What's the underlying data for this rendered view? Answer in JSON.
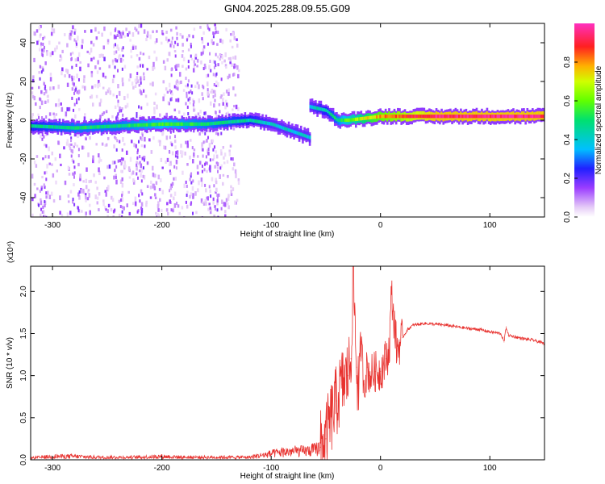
{
  "title": "GN04.2025.288.09.55.G09",
  "chart_data": [
    {
      "type": "heatmap",
      "title": "GN04.2025.288.09.55.G09",
      "xlabel": "Height of straight line (km)",
      "ylabel": "Frequency (Hz)",
      "xlim": [
        -320,
        150
      ],
      "ylim": [
        -50,
        50
      ],
      "xticks": [
        -300,
        -200,
        -100,
        0,
        100
      ],
      "xtick_labels": [
        "-300",
        "-200",
        "-100",
        "0",
        "100"
      ],
      "yticks": [
        -40,
        -20,
        0,
        20,
        40
      ],
      "ytick_labels": [
        "-40",
        "-20",
        "0",
        "20",
        "40"
      ],
      "colorbar": {
        "label": "Normalized spectral amplitude",
        "range": [
          0,
          1
        ],
        "ticks": [
          0.0,
          0.2,
          0.4,
          0.6,
          0.8
        ],
        "tick_labels": [
          "0.0",
          "0.2",
          "0.4",
          "0.6",
          "0.8"
        ]
      },
      "main_track": [
        {
          "x": -320,
          "f": -3,
          "amp": 0.45
        },
        {
          "x": -280,
          "f": -4,
          "amp": 0.5
        },
        {
          "x": -240,
          "f": -3,
          "amp": 0.5
        },
        {
          "x": -200,
          "f": -2,
          "amp": 0.55
        },
        {
          "x": -160,
          "f": -2,
          "amp": 0.5
        },
        {
          "x": -120,
          "f": 0,
          "amp": 0.45
        },
        {
          "x": -100,
          "f": -2,
          "amp": 0.4
        },
        {
          "x": -80,
          "f": -6,
          "amp": 0.4
        },
        {
          "x": -65,
          "f": -9,
          "amp": 0.4
        }
      ],
      "branch_track": [
        {
          "x": -65,
          "f": 7,
          "amp": 0.4
        },
        {
          "x": -50,
          "f": 5,
          "amp": 0.45
        },
        {
          "x": -40,
          "f": 0,
          "amp": 0.5
        },
        {
          "x": -30,
          "f": 0,
          "amp": 0.6
        },
        {
          "x": 0,
          "f": 2,
          "amp": 0.8
        },
        {
          "x": 50,
          "f": 2,
          "amp": 0.95
        },
        {
          "x": 100,
          "f": 2,
          "amp": 0.95
        },
        {
          "x": 150,
          "f": 2,
          "amp": 0.95
        }
      ]
    },
    {
      "type": "line",
      "xlabel": "Height of straight line (km)",
      "ylabel": "SNR (10 * v/v)",
      "y_scale_label": "(x10⁴)",
      "xlim": [
        -320,
        150
      ],
      "ylim": [
        0,
        2.3
      ],
      "xticks": [
        -300,
        -200,
        -100,
        0,
        100
      ],
      "xtick_labels": [
        "-300",
        "-200",
        "-100",
        "0",
        "100"
      ],
      "yticks": [
        0.0,
        0.5,
        1.0,
        1.5,
        2.0
      ],
      "ytick_labels": [
        "0.0",
        "0.5",
        "1.0",
        "1.5",
        "2.0"
      ],
      "series": [
        {
          "name": "SNR",
          "color": "#e8322f",
          "x": [
            -320,
            -300,
            -280,
            -260,
            -240,
            -220,
            -200,
            -180,
            -160,
            -140,
            -120,
            -110,
            -100,
            -90,
            -80,
            -70,
            -60,
            -55,
            -50,
            -45,
            -40,
            -35,
            -30,
            -27,
            -25,
            -22,
            -20,
            -18,
            -15,
            -12,
            -10,
            -5,
            0,
            5,
            8,
            10,
            15,
            20,
            25,
            30,
            40,
            50,
            60,
            70,
            80,
            90,
            100,
            110,
            113,
            115,
            117,
            120,
            130,
            140,
            150
          ],
          "y": [
            0.02,
            0.04,
            0.04,
            0.03,
            0.03,
            0.03,
            0.04,
            0.03,
            0.03,
            0.03,
            0.03,
            0.05,
            0.07,
            0.09,
            0.1,
            0.1,
            0.12,
            0.15,
            0.25,
            0.5,
            0.7,
            0.9,
            1.0,
            1.2,
            2.3,
            1.1,
            0.85,
            1.4,
            0.9,
            1.1,
            1.0,
            1.05,
            1.05,
            1.2,
            1.3,
            1.98,
            1.3,
            1.45,
            1.55,
            1.6,
            1.62,
            1.61,
            1.6,
            1.58,
            1.56,
            1.55,
            1.52,
            1.5,
            1.4,
            1.58,
            1.48,
            1.47,
            1.44,
            1.42,
            1.38
          ]
        }
      ]
    }
  ]
}
